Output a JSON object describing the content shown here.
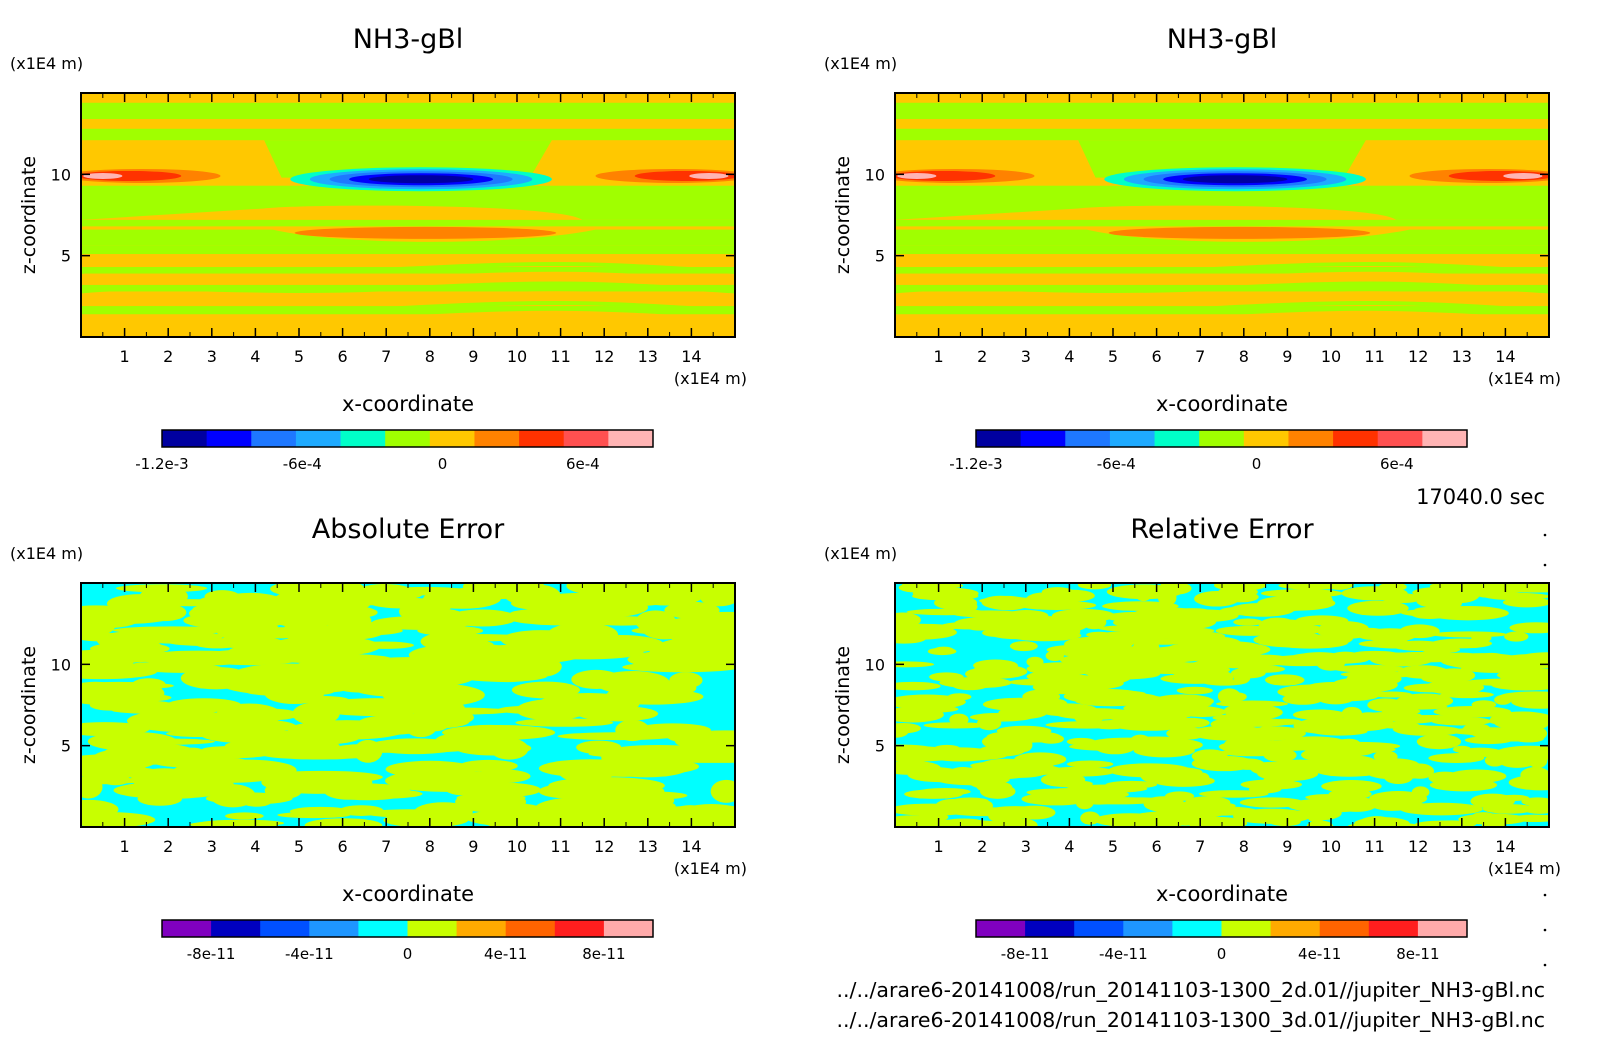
{
  "time_label": "17040.0 sec",
  "file_paths": [
    "../../arare6-20141008/run_20141103-1300_2d.01//jupiter_NH3-gBl.nc",
    "../../arare6-20141008/run_20141103-1300_3d.01//jupiter_NH3-gBl.nc"
  ],
  "colors": {
    "main_scale": [
      "#0000a0",
      "#0000ff",
      "#1e78ff",
      "#1eaaff",
      "#00ffc8",
      "#a0ff00",
      "#ffc800",
      "#ff8200",
      "#ff3200",
      "#ff5050",
      "#ffb4b4"
    ],
    "error_scale": [
      "#8000c0",
      "#0000c0",
      "#0050ff",
      "#1e96ff",
      "#00ffff",
      "#c8ff00",
      "#ffaa00",
      "#ff6400",
      "#ff1e1e",
      "#ffaaaa"
    ],
    "contour_main": [
      "#ffc800",
      "#a0ff00"
    ],
    "contour_error": [
      "#00ffff",
      "#c8ff00"
    ]
  },
  "chart_data": [
    {
      "type": "heatmap",
      "title": "NH3-gBl",
      "xlabel": "x-coordinate",
      "ylabel": "z-coordinate",
      "x_unit": "(x1E4 m)",
      "y_unit": "(x1E4 m)",
      "xticks": [
        "1",
        "2",
        "3",
        "4",
        "5",
        "6",
        "7",
        "8",
        "9",
        "10",
        "11",
        "12",
        "13",
        "14"
      ],
      "yticks": [
        "5",
        "10"
      ],
      "xlim": [
        0,
        15
      ],
      "ylim": [
        0,
        15
      ],
      "colorbar_ticks": [
        "-1.2e-3",
        "-6e-4",
        "0",
        "6e-4"
      ],
      "colorbar_range": [
        -0.0012,
        0.0009
      ]
    },
    {
      "type": "heatmap",
      "title": "NH3-gBl",
      "xlabel": "x-coordinate",
      "ylabel": "z-coordinate",
      "x_unit": "(x1E4 m)",
      "y_unit": "(x1E4 m)",
      "xticks": [
        "1",
        "2",
        "3",
        "4",
        "5",
        "6",
        "7",
        "8",
        "9",
        "10",
        "11",
        "12",
        "13",
        "14"
      ],
      "yticks": [
        "5",
        "10"
      ],
      "xlim": [
        0,
        15
      ],
      "ylim": [
        0,
        15
      ],
      "colorbar_ticks": [
        "-1.2e-3",
        "-6e-4",
        "0",
        "6e-4"
      ],
      "colorbar_range": [
        -0.0012,
        0.0009
      ]
    },
    {
      "type": "heatmap",
      "title": "Absolute Error",
      "xlabel": "x-coordinate",
      "ylabel": "z-coordinate",
      "x_unit": "(x1E4 m)",
      "y_unit": "(x1E4 m)",
      "xticks": [
        "1",
        "2",
        "3",
        "4",
        "5",
        "6",
        "7",
        "8",
        "9",
        "10",
        "11",
        "12",
        "13",
        "14"
      ],
      "yticks": [
        "5",
        "10"
      ],
      "xlim": [
        0,
        15
      ],
      "ylim": [
        0,
        15
      ],
      "colorbar_ticks": [
        "-8e-11",
        "-4e-11",
        "0",
        "4e-11",
        "8e-11"
      ],
      "colorbar_range": [
        -1e-10,
        1e-10
      ]
    },
    {
      "type": "heatmap",
      "title": "Relative Error",
      "xlabel": "x-coordinate",
      "ylabel": "z-coordinate",
      "x_unit": "(x1E4 m)",
      "y_unit": "(x1E4 m)",
      "xticks": [
        "1",
        "2",
        "3",
        "4",
        "5",
        "6",
        "7",
        "8",
        "9",
        "10",
        "11",
        "12",
        "13",
        "14"
      ],
      "yticks": [
        "5",
        "10"
      ],
      "xlim": [
        0,
        15
      ],
      "ylim": [
        0,
        15
      ],
      "colorbar_ticks": [
        "-8e-11",
        "-4e-11",
        "0",
        "4e-11",
        "8e-11"
      ],
      "colorbar_range": [
        -1e-10,
        1e-10
      ]
    }
  ]
}
